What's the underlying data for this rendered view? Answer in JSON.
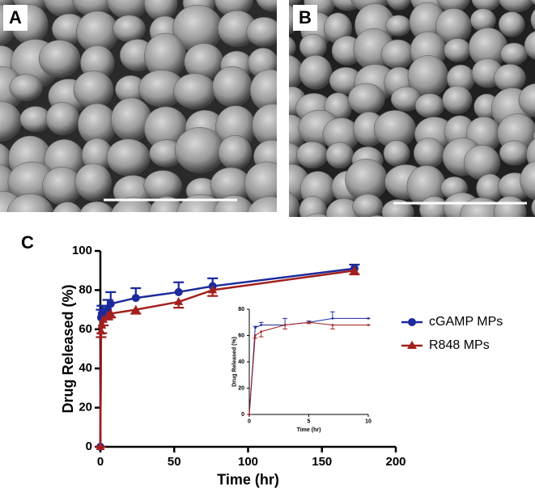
{
  "panel_labels": [
    "A",
    "B",
    "C"
  ],
  "chart_data": [
    {
      "type": "line",
      "x_label": "Time (hr)",
      "y_label": "Drug Released (%)",
      "x": [
        0,
        0.5,
        1,
        2,
        5,
        7,
        24,
        53,
        76,
        172
      ],
      "series": [
        {
          "name": "cGAMP MPs",
          "color": "#1c2a9c",
          "marker": "circle",
          "values": [
            0,
            66,
            68,
            68,
            70,
            73,
            76,
            79,
            82,
            91
          ],
          "errors": [
            0,
            4,
            4,
            4,
            5,
            6,
            5,
            5,
            4,
            2
          ]
        },
        {
          "name": "R848 MPs",
          "color": "#a3201e",
          "marker": "triangle",
          "values": [
            0,
            59,
            62,
            65,
            67,
            68,
            70,
            74,
            80,
            90
          ],
          "errors": [
            0,
            3,
            4,
            3,
            2,
            2,
            2,
            3,
            3,
            2
          ]
        }
      ],
      "xlim": [
        0,
        200
      ],
      "xticks": [
        0,
        50,
        100,
        150,
        200
      ],
      "ylim": [
        0,
        100
      ],
      "yticks": [
        0,
        20,
        40,
        60,
        80,
        100
      ],
      "legend": "right"
    },
    {
      "type": "line",
      "x_label": "Time (hr)",
      "y_label": "Drug Released (%)",
      "x": [
        0,
        0.5,
        1,
        3,
        5,
        7,
        10
      ],
      "series": [
        {
          "color": "#1c2a9c",
          "values": [
            0,
            66,
            68,
            68,
            70,
            73,
            73
          ],
          "errors": [
            0,
            1,
            2,
            5,
            1,
            5,
            0
          ]
        },
        {
          "color": "#a3201e",
          "values": [
            0,
            60,
            63,
            68,
            70,
            68,
            68
          ],
          "errors": [
            0,
            2,
            4,
            3,
            1,
            3,
            0
          ]
        }
      ],
      "xlim": [
        0,
        10
      ],
      "xticks": [
        0,
        5,
        10
      ],
      "ylim": [
        0,
        80
      ],
      "yticks": [
        0,
        20,
        40,
        60,
        80
      ]
    }
  ]
}
